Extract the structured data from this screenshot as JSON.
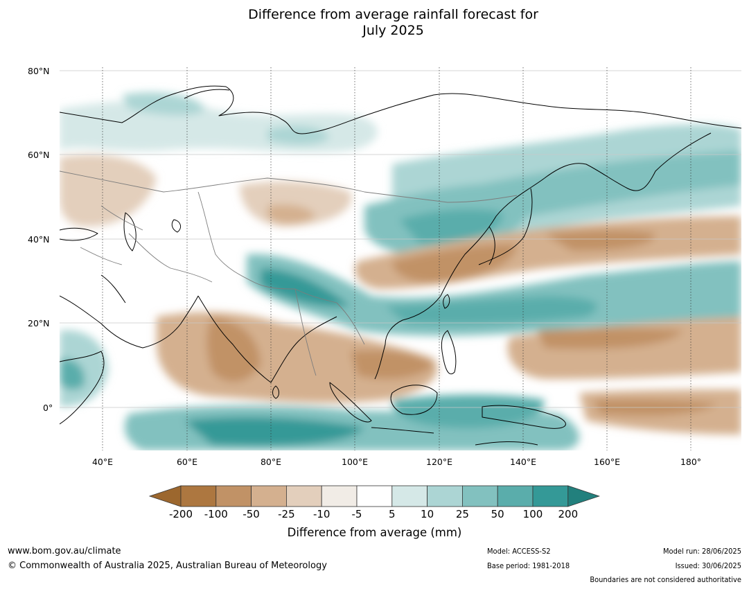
{
  "title": {
    "line1": "Difference from average rainfall forecast for",
    "line2": "July 2025"
  },
  "map": {
    "lat_labels": [
      "80°N",
      "60°N",
      "40°N",
      "20°N",
      "0°"
    ],
    "lon_labels": [
      "40°E",
      "60°E",
      "80°E",
      "100°E",
      "120°E",
      "140°E",
      "160°E",
      "180°"
    ]
  },
  "colorbar": {
    "ticks": [
      "-200",
      "-100",
      "-50",
      "-25",
      "-10",
      "-5",
      "5",
      "10",
      "25",
      "50",
      "100",
      "200"
    ],
    "colors": [
      "#9c672e",
      "#ad7740",
      "#c19266",
      "#d4b08f",
      "#e3cfbc",
      "#f1ece6",
      "#ffffff",
      "#d5e8e7",
      "#acd5d4",
      "#82c1bf",
      "#5aadab",
      "#349997",
      "#22807d"
    ],
    "label": "Difference from average (mm)"
  },
  "footer": {
    "url": "www.bom.gov.au/climate",
    "copyright": "© Commonwealth of Australia 2025, Australian Bureau of Meteorology",
    "model": "Model: ACCESS-S2",
    "base_period": "Base period: 1981-2018",
    "model_run": "Model run: 28/06/2025",
    "issued": "Issued: 30/06/2025",
    "disclaimer": "Boundaries are not considered authoritative"
  }
}
